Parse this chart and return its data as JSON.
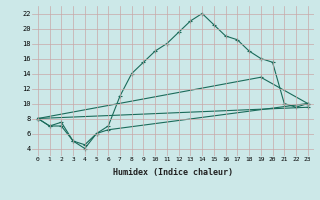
{
  "xlabel": "Humidex (Indice chaleur)",
  "bg_color": "#cce8e8",
  "line_color": "#1a6b5a",
  "xlim": [
    -0.5,
    23.5
  ],
  "ylim": [
    3.0,
    23.0
  ],
  "xticks": [
    0,
    1,
    2,
    3,
    4,
    5,
    6,
    7,
    8,
    9,
    10,
    11,
    12,
    13,
    14,
    15,
    16,
    17,
    18,
    19,
    20,
    21,
    22,
    23
  ],
  "yticks": [
    4,
    6,
    8,
    10,
    12,
    14,
    16,
    18,
    20,
    22
  ],
  "line1_x": [
    0,
    1,
    2,
    3,
    4,
    5,
    6,
    7,
    8,
    9,
    10,
    11,
    12,
    13,
    14,
    15,
    16,
    17,
    18,
    19,
    20,
    21,
    22,
    23
  ],
  "line1_y": [
    8.0,
    7.0,
    7.0,
    5.0,
    4.0,
    6.0,
    7.0,
    11.0,
    14.0,
    15.5,
    17.0,
    18.0,
    19.5,
    21.0,
    22.0,
    20.5,
    19.0,
    18.5,
    17.0,
    16.0,
    15.5,
    10.0,
    9.5,
    10.0
  ],
  "line2_x": [
    0,
    1,
    2,
    3,
    4,
    5,
    6,
    23
  ],
  "line2_y": [
    8.0,
    7.0,
    7.5,
    5.0,
    4.5,
    6.0,
    6.5,
    10.0
  ],
  "line3_x": [
    0,
    23
  ],
  "line3_y": [
    8.0,
    9.5
  ],
  "line4_x": [
    0,
    19,
    23
  ],
  "line4_y": [
    8.0,
    13.5,
    10.0
  ]
}
